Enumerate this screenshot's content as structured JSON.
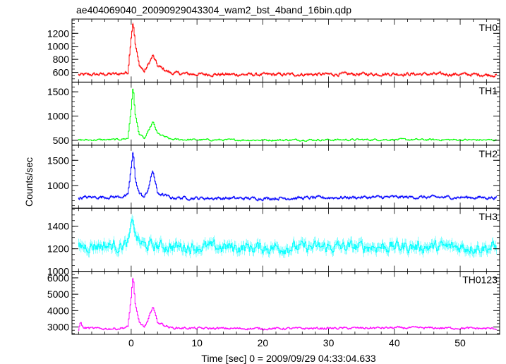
{
  "title": "ae404069040_20090929043304_wam2_bst_4band_16bin.qdp",
  "chart_data": {
    "type": "line",
    "title": "ae404069040_20090929043304_wam2_bst_4band_16bin.qdp",
    "xlabel": "Time [sec] 0 = 2009/09/29 04:33:04.633",
    "ylabel": "Counts/sec",
    "xlim": [
      -9,
      56
    ],
    "x_ticks": [
      0,
      10,
      20,
      30,
      40,
      50
    ],
    "grid": false,
    "panels": [
      {
        "name": "TH0",
        "color": "#ff0000",
        "ylim": [
          450,
          1420
        ],
        "y_ticks": [
          600,
          800,
          1000,
          1200
        ],
        "key_points": {
          "x": [
            -8,
            -5,
            -2,
            -0.5,
            0,
            0.3,
            0.6,
            1.2,
            2,
            2.5,
            3.3,
            4,
            6,
            10,
            20,
            30,
            40,
            50,
            55.5
          ],
          "y": [
            560,
            570,
            575,
            600,
            1150,
            1400,
            1050,
            720,
            610,
            700,
            860,
            700,
            590,
            570,
            565,
            570,
            575,
            570,
            560
          ]
        },
        "noise": 45
      },
      {
        "name": "TH1",
        "color": "#00ff00",
        "ylim": [
          400,
          1700
        ],
        "y_ticks": [
          500,
          1000,
          1500
        ],
        "key_points": {
          "x": [
            -8,
            -5,
            -2,
            -0.5,
            0,
            0.3,
            0.6,
            1.2,
            2,
            2.5,
            3.3,
            4,
            6,
            10,
            20,
            30,
            40,
            50,
            55.5
          ],
          "y": [
            505,
            510,
            515,
            540,
            1150,
            1620,
            1050,
            640,
            530,
            650,
            880,
            640,
            520,
            510,
            505,
            510,
            515,
            510,
            505
          ]
        },
        "noise": 35
      },
      {
        "name": "TH2",
        "color": "#0000ff",
        "ylim": [
          550,
          1800
        ],
        "y_ticks": [
          1000,
          1500
        ],
        "key_points": {
          "x": [
            -8,
            -5,
            -2,
            -0.5,
            0,
            0.3,
            0.6,
            1.2,
            2,
            2.5,
            3.3,
            4,
            6,
            10,
            20,
            30,
            40,
            50,
            55.5
          ],
          "y": [
            760,
            770,
            775,
            800,
            1350,
            1680,
            1150,
            860,
            760,
            900,
            1300,
            850,
            760,
            750,
            745,
            760,
            770,
            765,
            760
          ]
        },
        "noise": 55
      },
      {
        "name": "TH3",
        "color": "#00ffff",
        "ylim": [
          1000,
          1560
        ],
        "y_ticks": [
          1000,
          1200,
          1400
        ],
        "key_points": {
          "x": [
            -8,
            -5,
            -2,
            -0.5,
            0,
            0.3,
            0.6,
            1.2,
            2,
            6,
            10,
            20,
            30,
            40,
            50,
            55.5
          ],
          "y": [
            1220,
            1230,
            1225,
            1240,
            1380,
            1470,
            1330,
            1260,
            1230,
            1220,
            1215,
            1210,
            1215,
            1220,
            1215,
            1210
          ]
        },
        "noise": 90
      },
      {
        "name": "TH0123",
        "color": "#ff00ff",
        "ylim": [
          2550,
          6400
        ],
        "y_ticks": [
          3000,
          4000,
          5000,
          6000
        ],
        "key_points": {
          "x": [
            -8,
            -7.7,
            -7.3,
            -5,
            -2,
            -0.5,
            0,
            0.3,
            0.6,
            1.2,
            2,
            2.5,
            3.3,
            4,
            6,
            10,
            20,
            30,
            40,
            50,
            55.5
          ],
          "y": [
            2850,
            3300,
            2950,
            2900,
            2900,
            3000,
            4800,
            6200,
            4400,
            3300,
            3000,
            3300,
            4300,
            3300,
            2950,
            2920,
            2900,
            2920,
            2950,
            2930,
            2900
          ]
        },
        "noise": 120
      }
    ]
  }
}
